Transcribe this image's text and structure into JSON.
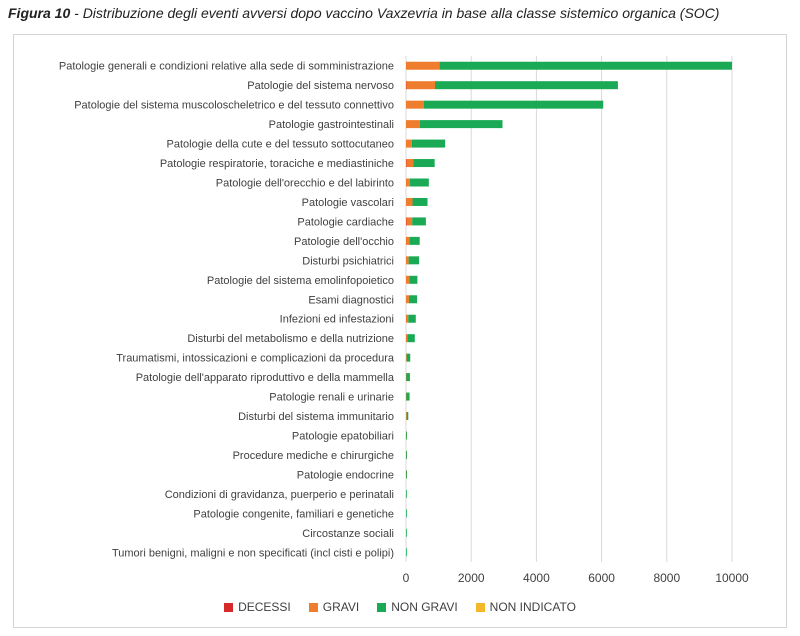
{
  "caption": {
    "figure": "Figura 10",
    "text": " - Distribuzione degli eventi avversi dopo vaccino Vaxzevria in base alla classe sistemico organica (SOC)"
  },
  "chart_data": {
    "type": "bar",
    "orientation": "horizontal",
    "stacked": true,
    "categories": [
      "Patologie generali e condizioni relative alla sede di somministrazione",
      "Patologie del sistema nervoso",
      "Patologie del sistema muscoloscheletrico e del tessuto connettivo",
      "Patologie gastrointestinali",
      "Patologie della cute e del tessuto sottocutaneo",
      "Patologie respiratorie, toraciche e mediastiniche",
      "Patologie dell'orecchio e del labirinto",
      "Patologie vascolari",
      "Patologie cardiache",
      "Patologie dell'occhio",
      "Disturbi psichiatrici",
      "Patologie del sistema emolinfopoietico",
      "Esami diagnostici",
      "Infezioni ed infestazioni",
      "Disturbi del metabolismo e della nutrizione",
      "Traumatismi, intossicazioni e complicazioni da procedura",
      "Patologie dell'apparato riproduttivo e della mammella",
      "Patologie renali e urinarie",
      "Disturbi del sistema immunitario",
      "Patologie epatobiliari",
      "Procedure mediche e chirurgiche",
      "Patologie endocrine",
      "Condizioni di gravidanza, puerperio e perinatali",
      "Patologie congenite, familiari e genetiche",
      "Circostanze sociali",
      "Tumori benigni, maligni e non specificati (incl cisti e polipi)"
    ],
    "series": [
      {
        "name": "DECESSI",
        "color": "#d62a2a",
        "values": [
          0,
          10,
          0,
          0,
          0,
          10,
          0,
          0,
          10,
          0,
          0,
          0,
          0,
          0,
          0,
          0,
          0,
          0,
          0,
          0,
          0,
          0,
          0,
          0,
          0,
          0
        ]
      },
      {
        "name": "GRAVI",
        "color": "#ef7d2e",
        "values": [
          1030,
          880,
          550,
          430,
          180,
          220,
          120,
          200,
          180,
          110,
          80,
          100,
          90,
          70,
          40,
          20,
          10,
          10,
          20,
          5,
          5,
          5,
          0,
          0,
          0,
          0
        ]
      },
      {
        "name": "NON GRAVI",
        "color": "#1aaa55",
        "values": [
          8970,
          5610,
          5500,
          2530,
          1020,
          650,
          580,
          460,
          420,
          310,
          320,
          250,
          250,
          230,
          230,
          110,
          110,
          100,
          50,
          20,
          15,
          10,
          10,
          5,
          5,
          5
        ]
      },
      {
        "name": "NON INDICATO",
        "color": "#f3b72a",
        "values": [
          0,
          0,
          0,
          0,
          0,
          0,
          0,
          0,
          0,
          0,
          0,
          0,
          0,
          0,
          0,
          0,
          0,
          0,
          0,
          0,
          0,
          0,
          0,
          0,
          0,
          0
        ]
      }
    ],
    "xlim": [
      0,
      10000
    ],
    "xticks": [
      0,
      2000,
      4000,
      6000,
      8000,
      10000
    ],
    "grid": true,
    "legend_position": "bottom"
  }
}
